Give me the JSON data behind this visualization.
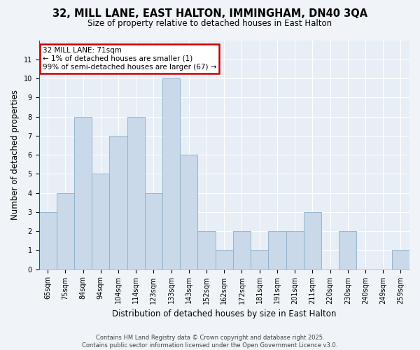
{
  "title": "32, MILL LANE, EAST HALTON, IMMINGHAM, DN40 3QA",
  "subtitle": "Size of property relative to detached houses in East Halton",
  "xlabel": "Distribution of detached houses by size in East Halton",
  "ylabel": "Number of detached properties",
  "categories": [
    "65sqm",
    "75sqm",
    "84sqm",
    "94sqm",
    "104sqm",
    "114sqm",
    "123sqm",
    "133sqm",
    "143sqm",
    "152sqm",
    "162sqm",
    "172sqm",
    "181sqm",
    "191sqm",
    "201sqm",
    "211sqm",
    "220sqm",
    "230sqm",
    "240sqm",
    "249sqm",
    "259sqm"
  ],
  "values": [
    3,
    4,
    8,
    5,
    7,
    8,
    4,
    10,
    6,
    2,
    1,
    2,
    1,
    2,
    2,
    3,
    0,
    2,
    0,
    0,
    1
  ],
  "bar_color": "#c9d9ea",
  "bar_edgecolor": "#8baec8",
  "annotation_text": "32 MILL LANE: 71sqm\n← 1% of detached houses are smaller (1)\n99% of semi-detached houses are larger (67) →",
  "annotation_box_color": "white",
  "annotation_box_edgecolor": "#cc0000",
  "ylim": [
    0,
    12
  ],
  "yticks": [
    0,
    1,
    2,
    3,
    4,
    5,
    6,
    7,
    8,
    9,
    10,
    11
  ],
  "redline_x": 0,
  "footer": "Contains HM Land Registry data © Crown copyright and database right 2025.\nContains public sector information licensed under the Open Government Licence v3.0.",
  "fig_bg_color": "#f0f4f8",
  "plot_bg_color": "#e8eef5",
  "grid_color": "#ffffff",
  "title_fontsize": 10.5,
  "subtitle_fontsize": 8.5,
  "tick_fontsize": 7,
  "ylabel_fontsize": 8.5,
  "xlabel_fontsize": 8.5,
  "footer_fontsize": 6,
  "annotation_fontsize": 7.5
}
